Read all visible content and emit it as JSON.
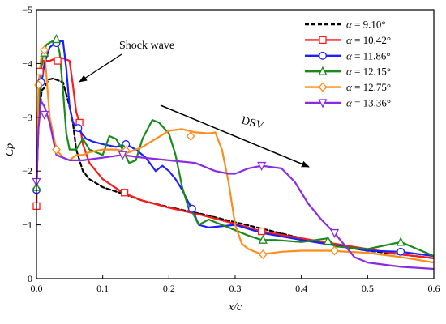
{
  "chart_data": {
    "type": "line",
    "xlabel": "x/c",
    "ylabel": "Cp",
    "xlim": [
      0,
      0.6
    ],
    "ylim": [
      0,
      -5
    ],
    "y_inverted": true,
    "xticks": [
      0,
      0.1,
      0.2,
      0.3,
      0.4,
      0.5,
      0.6
    ],
    "xtick_labels": [
      "0.0",
      "0.1",
      "0.2",
      "0.3",
      "0.4",
      "0.5",
      "0.6"
    ],
    "yticks": [
      0,
      -1,
      -2,
      -3,
      -4,
      -5
    ],
    "ytick_labels": [
      "0",
      "−1",
      "−2",
      "−3",
      "−4",
      "−5"
    ],
    "grid": false,
    "legend_position": "top-right",
    "annotations": [
      {
        "text": "Shock wave",
        "x": 0.105,
        "y": -4.45
      },
      {
        "text": "DSV",
        "x": 0.258,
        "y": -2.95
      }
    ],
    "series": [
      {
        "symbol": "α",
        "label": " = 9.10°",
        "color": "#000000",
        "dashed": true,
        "marker": "none",
        "x": [
          0,
          0.003,
          0.008,
          0.012,
          0.018,
          0.025,
          0.03,
          0.04,
          0.05,
          0.055,
          0.06,
          0.07,
          0.08,
          0.1,
          0.13,
          0.16,
          0.2,
          0.25,
          0.3,
          0.35,
          0.4,
          0.45,
          0.5,
          0.55,
          0.6
        ],
        "y": [
          -1.7,
          -2.9,
          -3.5,
          -3.55,
          -3.7,
          -3.72,
          -3.7,
          -3.65,
          -3.2,
          -2.9,
          -2.4,
          -2.0,
          -1.85,
          -1.7,
          -1.58,
          -1.45,
          -1.33,
          -1.2,
          -1.05,
          -0.9,
          -0.75,
          -0.62,
          -0.52,
          -0.45,
          -0.38
        ],
        "marker_x": [],
        "marker_y": []
      },
      {
        "symbol": "α",
        "label": " = 10.42°",
        "color": "#ff1a1a",
        "dashed": false,
        "marker": "square",
        "x": [
          0,
          0.002,
          0.005,
          0.01,
          0.02,
          0.03,
          0.04,
          0.05,
          0.055,
          0.06,
          0.065,
          0.07,
          0.08,
          0.1,
          0.13,
          0.16,
          0.2,
          0.25,
          0.3,
          0.34,
          0.4,
          0.45,
          0.5,
          0.55,
          0.6
        ],
        "y": [
          -1.35,
          -2.6,
          -3.85,
          -4.05,
          -4.05,
          -4.1,
          -4.1,
          -4.05,
          -3.6,
          -3.1,
          -2.9,
          -2.5,
          -2.15,
          -1.85,
          -1.6,
          -1.45,
          -1.32,
          -1.18,
          -1.02,
          -0.88,
          -0.75,
          -0.65,
          -0.55,
          -0.45,
          -0.38
        ],
        "marker_x": [
          0,
          0.005,
          0.032,
          0.065,
          0.133,
          0.34
        ],
        "marker_y": [
          -1.35,
          -3.85,
          -4.05,
          -2.9,
          -1.6,
          -0.88
        ]
      },
      {
        "symbol": "α",
        "label": " = 11.86°",
        "color": "#1e1eff",
        "dashed": false,
        "marker": "circle",
        "x": [
          0,
          0.002,
          0.006,
          0.012,
          0.02,
          0.03,
          0.04,
          0.045,
          0.05,
          0.055,
          0.062,
          0.075,
          0.085,
          0.1,
          0.12,
          0.135,
          0.15,
          0.165,
          0.18,
          0.19,
          0.2,
          0.21,
          0.22,
          0.228,
          0.235,
          0.245,
          0.26,
          0.3,
          0.34,
          0.4,
          0.45,
          0.5,
          0.55,
          0.6
        ],
        "y": [
          -1.65,
          -2.8,
          -3.5,
          -4.0,
          -4.3,
          -4.4,
          -4.42,
          -3.9,
          -3.2,
          -2.9,
          -2.8,
          -2.6,
          -2.55,
          -2.5,
          -2.45,
          -2.5,
          -2.4,
          -2.25,
          -2.0,
          -2.1,
          -2.0,
          -1.85,
          -1.65,
          -1.45,
          -1.3,
          -1.0,
          -0.95,
          -1.0,
          -0.85,
          -0.72,
          -0.62,
          -0.52,
          -0.5,
          -0.42
        ],
        "marker_x": [
          0,
          0.007,
          0.03,
          0.063,
          0.135,
          0.235,
          0.55
        ],
        "marker_y": [
          -1.65,
          -3.65,
          -4.38,
          -2.8,
          -2.5,
          -1.3,
          -0.5
        ]
      },
      {
        "symbol": "α",
        "label": " = 12.15°",
        "color": "#1a8a1a",
        "dashed": false,
        "marker": "triangle",
        "x": [
          0,
          0.002,
          0.006,
          0.01,
          0.015,
          0.022,
          0.03,
          0.035,
          0.04,
          0.045,
          0.05,
          0.06,
          0.07,
          0.08,
          0.09,
          0.1,
          0.11,
          0.12,
          0.13,
          0.14,
          0.15,
          0.16,
          0.175,
          0.185,
          0.2,
          0.21,
          0.22,
          0.23,
          0.235,
          0.245,
          0.26,
          0.28,
          0.3,
          0.32,
          0.34,
          0.36,
          0.4,
          0.44,
          0.45,
          0.5,
          0.55,
          0.6
        ],
        "y": [
          -1.7,
          -3.0,
          -3.8,
          -4.2,
          -4.35,
          -4.4,
          -4.45,
          -4.2,
          -3.5,
          -2.7,
          -2.4,
          -2.4,
          -2.6,
          -2.4,
          -2.35,
          -2.3,
          -2.65,
          -2.6,
          -2.4,
          -2.15,
          -2.2,
          -2.6,
          -2.95,
          -2.9,
          -2.7,
          -2.3,
          -1.7,
          -1.3,
          -1.25,
          -1.0,
          -1.1,
          -1.0,
          -0.9,
          -0.8,
          -0.72,
          -0.72,
          -0.68,
          -0.75,
          -0.6,
          -0.55,
          -0.68,
          -0.42
        ],
        "marker_x": [
          0,
          0.012,
          0.03,
          0.132,
          0.342,
          0.44,
          0.55
        ],
        "marker_y": [
          -1.7,
          -4.2,
          -4.45,
          -2.4,
          -0.72,
          -0.7,
          -0.68
        ]
      },
      {
        "symbol": "α",
        "label": " = 12.75°",
        "color": "#ff8c1a",
        "dashed": false,
        "marker": "diamond",
        "x": [
          0,
          0.003,
          0.007,
          0.012,
          0.02,
          0.03,
          0.04,
          0.05,
          0.06,
          0.07,
          0.08,
          0.1,
          0.12,
          0.14,
          0.16,
          0.18,
          0.2,
          0.22,
          0.24,
          0.26,
          0.27,
          0.28,
          0.29,
          0.3,
          0.31,
          0.32,
          0.34,
          0.37,
          0.4,
          0.44,
          0.5,
          0.55,
          0.6
        ],
        "y": [
          -1.8,
          -3.6,
          -4.1,
          -4.25,
          -3.0,
          -2.4,
          -2.25,
          -2.2,
          -2.3,
          -2.3,
          -2.35,
          -2.4,
          -2.4,
          -2.35,
          -2.45,
          -2.6,
          -2.75,
          -2.78,
          -2.72,
          -2.7,
          -2.72,
          -2.4,
          -1.8,
          -1.0,
          -0.65,
          -0.55,
          -0.45,
          -0.5,
          -0.52,
          -0.52,
          -0.48,
          -0.4,
          -0.3
        ],
        "marker_x": [
          0.003,
          0.012,
          0.03,
          0.135,
          0.233,
          0.342,
          0.45
        ],
        "marker_y": [
          -3.6,
          -4.25,
          -2.4,
          -2.38,
          -2.65,
          -0.45,
          -0.52
        ]
      },
      {
        "symbol": "α",
        "label": " = 13.36°",
        "color": "#8a2be2",
        "dashed": false,
        "marker": "triangle-down",
        "x": [
          0,
          0.003,
          0.007,
          0.012,
          0.02,
          0.03,
          0.05,
          0.07,
          0.1,
          0.13,
          0.16,
          0.2,
          0.24,
          0.27,
          0.29,
          0.3,
          0.32,
          0.34,
          0.37,
          0.39,
          0.41,
          0.43,
          0.45,
          0.48,
          0.5,
          0.55,
          0.6
        ],
        "y": [
          -1.8,
          -2.8,
          -3.3,
          -3.2,
          -2.9,
          -2.3,
          -2.2,
          -2.2,
          -2.25,
          -2.3,
          -2.25,
          -2.2,
          -2.15,
          -2.0,
          -1.95,
          -1.95,
          -2.05,
          -2.1,
          -2.05,
          -1.8,
          -1.4,
          -1.1,
          -0.85,
          -0.4,
          -0.3,
          -0.22,
          -0.18
        ],
        "marker_x": [
          0,
          0.012,
          0.13,
          0.34,
          0.45
        ],
        "marker_y": [
          -1.8,
          -3.05,
          -2.3,
          -2.1,
          -0.85
        ]
      }
    ]
  }
}
